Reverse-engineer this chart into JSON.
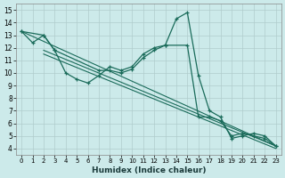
{
  "xlabel": "Humidex (Indice chaleur)",
  "bg_color": "#cceaea",
  "grid_color": "#b0cccc",
  "line_color": "#1a6b5a",
  "xlim": [
    -0.5,
    23.5
  ],
  "ylim": [
    3.5,
    15.5
  ],
  "xtick_labels": [
    "0",
    "1",
    "2",
    "3",
    "4",
    "5",
    "6",
    "7",
    "8",
    "9",
    "10",
    "11",
    "12",
    "13",
    "14",
    "15",
    "16",
    "17",
    "18",
    "19",
    "20",
    "21",
    "22",
    "23"
  ],
  "ytick_labels": [
    "4",
    "5",
    "6",
    "7",
    "8",
    "9",
    "10",
    "11",
    "12",
    "13",
    "14",
    "15"
  ],
  "curve_main_x": [
    0,
    1,
    2,
    3,
    4,
    5,
    6,
    7,
    8,
    9,
    10,
    11,
    12,
    13,
    14,
    15,
    16,
    17,
    18,
    19,
    20,
    21,
    22,
    23
  ],
  "curve_main_y": [
    13.3,
    12.4,
    13.0,
    11.8,
    10.0,
    9.5,
    9.2,
    9.8,
    10.5,
    10.2,
    10.5,
    11.5,
    12.0,
    12.2,
    14.3,
    14.8,
    9.8,
    7.0,
    6.5,
    4.8,
    5.0,
    5.2,
    5.0,
    4.2
  ],
  "curve_upper_x": [
    0,
    2,
    3,
    7,
    8,
    9,
    10,
    11,
    12,
    13,
    15,
    16,
    17,
    18,
    19,
    20,
    21,
    22,
    23
  ],
  "curve_upper_y": [
    13.3,
    13.0,
    11.8,
    10.2,
    10.2,
    10.0,
    10.3,
    11.2,
    11.8,
    12.2,
    12.2,
    6.5,
    6.5,
    6.2,
    5.0,
    5.2,
    5.0,
    4.8,
    4.2
  ],
  "diag_lines": [
    {
      "x": [
        0,
        23
      ],
      "y": [
        13.3,
        4.2
      ]
    },
    {
      "x": [
        2,
        23
      ],
      "y": [
        11.8,
        4.2
      ]
    },
    {
      "x": [
        2,
        23
      ],
      "y": [
        11.5,
        4.0
      ]
    }
  ]
}
